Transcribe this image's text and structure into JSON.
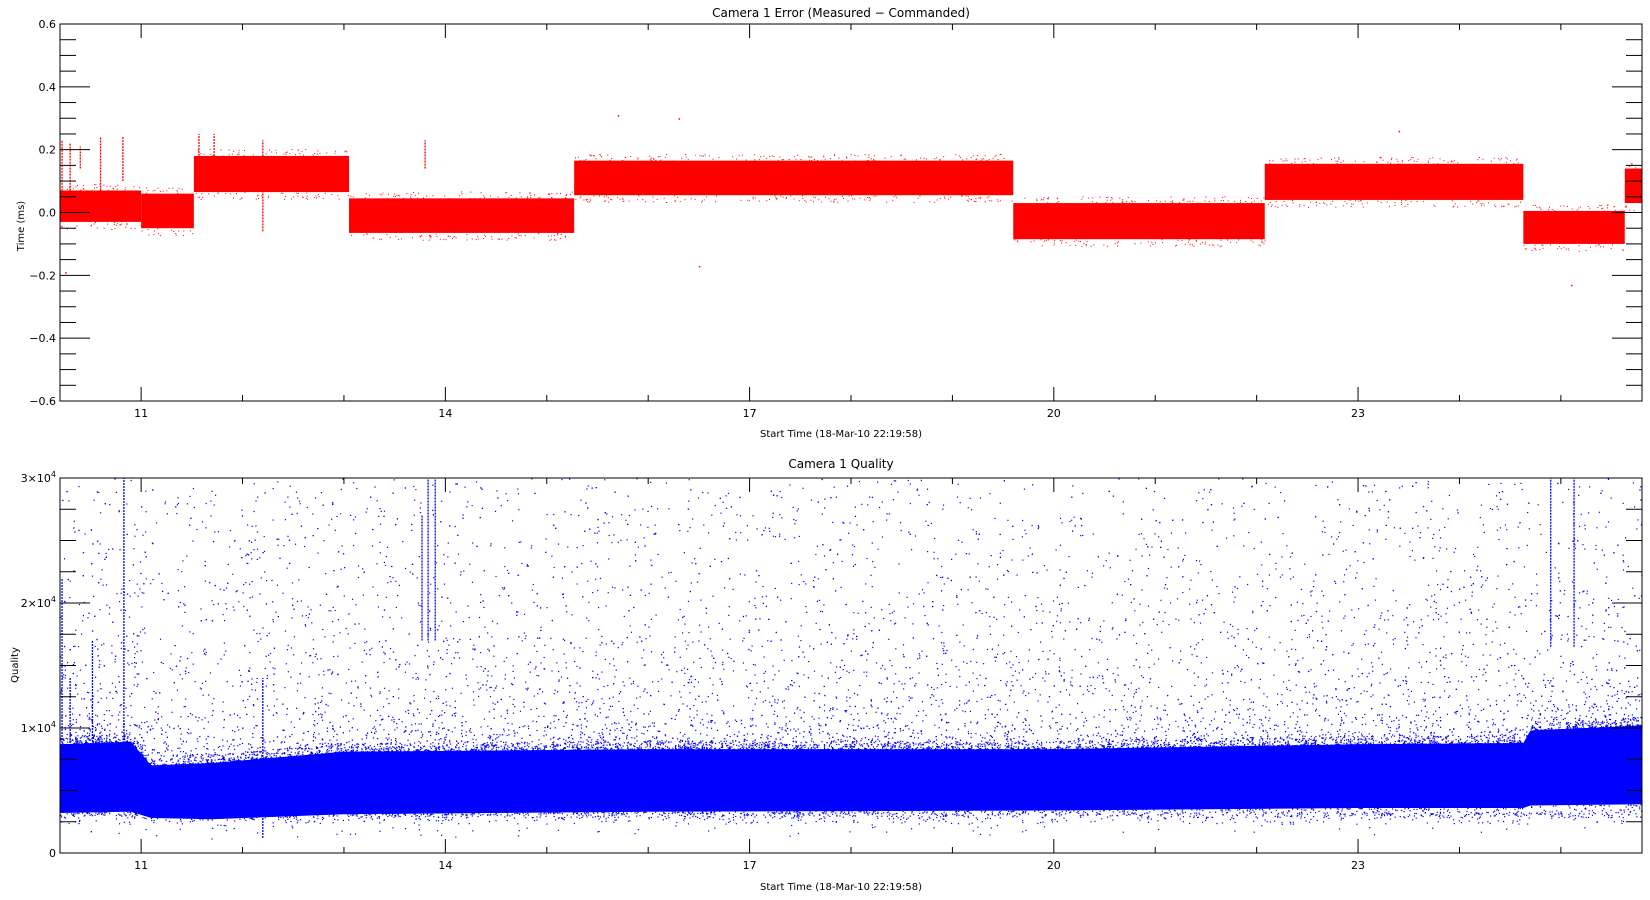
{
  "chart_data": [
    {
      "type": "scatter",
      "title": "Camera 1 Error (Measured − Commanded)",
      "xlabel": "Start Time (18-Mar-10 22:19:58)",
      "ylabel": "Time (ms)",
      "xlim": [
        10.2,
        25.8
      ],
      "ylim": [
        -0.6,
        0.6
      ],
      "x_ticks": [
        11,
        14,
        17,
        20,
        23
      ],
      "x_tick_labels": [
        "11",
        "14",
        "17",
        "20",
        "23"
      ],
      "y_ticks": [
        -0.6,
        -0.4,
        -0.2,
        0.0,
        0.2,
        0.4,
        0.6
      ],
      "y_tick_labels": [
        "−0.6",
        "−0.4",
        "−0.2",
        "0.0",
        "0.2",
        "0.4",
        "0.6"
      ],
      "grid": false,
      "color": "#ff0000",
      "series": [
        {
          "segments": [
            {
              "x_start": 10.2,
              "x_end": 11.0,
              "y_low": -0.03,
              "y_high": 0.07
            },
            {
              "x_start": 11.0,
              "x_end": 11.52,
              "y_low": -0.05,
              "y_high": 0.06
            },
            {
              "x_start": 11.52,
              "x_end": 13.05,
              "y_low": 0.065,
              "y_high": 0.18
            },
            {
              "x_start": 13.05,
              "x_end": 15.27,
              "y_low": -0.065,
              "y_high": 0.045
            },
            {
              "x_start": 15.27,
              "x_end": 19.6,
              "y_low": 0.055,
              "y_high": 0.165
            },
            {
              "x_start": 19.6,
              "x_end": 22.08,
              "y_low": -0.085,
              "y_high": 0.03
            },
            {
              "x_start": 22.08,
              "x_end": 24.63,
              "y_low": 0.04,
              "y_high": 0.155
            },
            {
              "x_start": 24.63,
              "x_end": 25.63,
              "y_low": -0.1,
              "y_high": 0.005
            },
            {
              "x_start": 25.63,
              "x_end": 25.8,
              "y_low": 0.03,
              "y_high": 0.14
            }
          ],
          "spikes": [
            {
              "x": 10.22,
              "y_low": 0.05,
              "y_high": 0.23
            },
            {
              "x": 10.3,
              "y_low": 0.06,
              "y_high": 0.22
            },
            {
              "x": 10.4,
              "y_low": 0.14,
              "y_high": 0.21
            },
            {
              "x": 10.6,
              "y_low": 0.07,
              "y_high": 0.24
            },
            {
              "x": 10.82,
              "y_low": 0.1,
              "y_high": 0.24
            },
            {
              "x": 11.57,
              "y_low": 0.18,
              "y_high": 0.25
            },
            {
              "x": 11.72,
              "y_low": 0.18,
              "y_high": 0.25
            },
            {
              "x": 12.2,
              "y_low": -0.06,
              "y_high": 0.23
            },
            {
              "x": 13.8,
              "y_low": 0.14,
              "y_high": 0.23
            }
          ],
          "outliers": [
            {
              "x": 15.7,
              "y": 0.31
            },
            {
              "x": 16.3,
              "y": 0.3
            },
            {
              "x": 16.5,
              "y": -0.17
            },
            {
              "x": 10.25,
              "y": -0.19
            },
            {
              "x": 25.1,
              "y": -0.23
            },
            {
              "x": 23.4,
              "y": 0.26
            }
          ]
        }
      ]
    },
    {
      "type": "scatter",
      "title": "Camera 1 Quality",
      "xlabel": "Start Time (18-Mar-10 22:19:58)",
      "ylabel": "Quality",
      "xlim": [
        10.2,
        25.8
      ],
      "ylim": [
        0,
        30000
      ],
      "x_ticks": [
        11,
        14,
        17,
        20,
        23
      ],
      "x_tick_labels": [
        "11",
        "14",
        "17",
        "20",
        "23"
      ],
      "y_ticks": [
        0,
        10000,
        20000,
        30000
      ],
      "y_tick_labels": [
        {
          "base": "0",
          "exp": ""
        },
        {
          "base": "1×10",
          "exp": "4"
        },
        {
          "base": "2×10",
          "exp": "4"
        },
        {
          "base": "3×10",
          "exp": "4"
        }
      ],
      "grid": false,
      "color": "#0000ff",
      "series": [
        {
          "band": [
            {
              "x": 10.2,
              "y_low": 3200,
              "y_high": 8700
            },
            {
              "x": 10.9,
              "y_low": 3300,
              "y_high": 8900
            },
            {
              "x": 11.1,
              "y_low": 2800,
              "y_high": 7000
            },
            {
              "x": 11.7,
              "y_low": 2700,
              "y_high": 7200
            },
            {
              "x": 13.0,
              "y_low": 3100,
              "y_high": 8100
            },
            {
              "x": 16.0,
              "y_low": 3300,
              "y_high": 8300
            },
            {
              "x": 20.0,
              "y_low": 3400,
              "y_high": 8300
            },
            {
              "x": 23.0,
              "y_low": 3600,
              "y_high": 8700
            },
            {
              "x": 24.63,
              "y_low": 3600,
              "y_high": 8800
            },
            {
              "x": 24.7,
              "y_low": 3800,
              "y_high": 9800
            },
            {
              "x": 25.8,
              "y_low": 3900,
              "y_high": 10200
            }
          ],
          "spikes": [
            {
              "x": 10.22,
              "y_low": 4000,
              "y_high": 22000
            },
            {
              "x": 10.3,
              "y_low": 4000,
              "y_high": 14000
            },
            {
              "x": 10.52,
              "y_low": 6000,
              "y_high": 17000
            },
            {
              "x": 10.83,
              "y_low": 4000,
              "y_high": 30000
            },
            {
              "x": 12.2,
              "y_low": 1200,
              "y_high": 14000
            },
            {
              "x": 13.77,
              "y_low": 17000,
              "y_high": 27000
            },
            {
              "x": 13.83,
              "y_low": 17000,
              "y_high": 30000
            },
            {
              "x": 13.9,
              "y_low": 17000,
              "y_high": 30000
            },
            {
              "x": 24.9,
              "y_low": 16500,
              "y_high": 30000
            },
            {
              "x": 25.13,
              "y_low": 16500,
              "y_high": 30000
            }
          ],
          "scatter_max": 30000
        }
      ]
    }
  ]
}
